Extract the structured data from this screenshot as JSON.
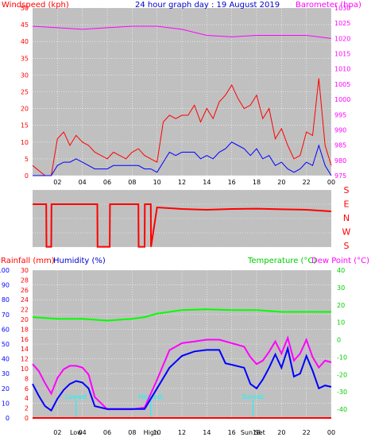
{
  "colors": {
    "panel": "#c0c0c0",
    "grid": "#ffffff",
    "windspeed": "#ff0000",
    "gust": "#0000ff",
    "barometer": "#ff00ff",
    "direction": "#ff0000",
    "rainfall": "#ff0000",
    "humidity": "#0000ff",
    "temperature": "#00ff00",
    "dewpoint": "#ff00ff",
    "events": "#00ffff"
  },
  "chart_data": [
    {
      "type": "line",
      "title": "24 hour graph day : 19 August 2019",
      "ylabel": "Windspeed (kph)",
      "y2label": "Barometer (hpa)",
      "x_ticks": [
        "02",
        "04",
        "06",
        "08",
        "10",
        "12",
        "14",
        "16",
        "18",
        "20",
        "22",
        "00"
      ],
      "ylim": [
        0,
        50
      ],
      "y_ticks": [
        "0",
        "5",
        "10",
        "15",
        "20",
        "25",
        "30",
        "35",
        "40",
        "45",
        "50"
      ],
      "y2lim": [
        975,
        1030
      ],
      "y2_ticks": [
        "975",
        "980",
        "985",
        "990",
        "995",
        "1000",
        "1005",
        "1010",
        "1015",
        "1020",
        "1025",
        "1030"
      ],
      "grid": true,
      "series": [
        {
          "name": "Windspeed",
          "axis": "left",
          "x": [
            0,
            1,
            1.5,
            2,
            2.5,
            3,
            3.5,
            4,
            4.5,
            5,
            5.5,
            6,
            6.5,
            7,
            7.5,
            8,
            8.5,
            9,
            9.5,
            10,
            10.5,
            11,
            11.5,
            12,
            12.5,
            13,
            13.5,
            14,
            14.5,
            15,
            15.5,
            16,
            16.5,
            17,
            17.5,
            18,
            18.5,
            19,
            19.5,
            20,
            20.5,
            21,
            21.5,
            22,
            22.5,
            23,
            23.5,
            24
          ],
          "values": [
            3,
            0,
            0,
            11,
            13,
            9,
            12,
            10,
            9,
            7,
            6,
            5,
            7,
            6,
            5,
            7,
            8,
            6,
            5,
            4,
            16,
            18,
            17,
            18,
            18,
            21,
            16,
            20,
            17,
            22,
            24,
            27,
            23,
            20,
            21,
            24,
            17,
            20,
            11,
            14,
            9,
            5,
            6,
            13,
            12,
            29,
            9,
            3
          ]
        },
        {
          "name": "Gust",
          "axis": "left",
          "x": [
            0,
            1,
            1.5,
            2,
            2.5,
            3,
            3.5,
            4,
            4.5,
            5,
            5.5,
            6,
            6.5,
            7,
            7.5,
            8,
            8.5,
            9,
            9.5,
            10,
            10.5,
            11,
            11.5,
            12,
            12.5,
            13,
            13.5,
            14,
            14.5,
            15,
            15.5,
            16,
            16.5,
            17,
            17.5,
            18,
            18.5,
            19,
            19.5,
            20,
            20.5,
            21,
            21.5,
            22,
            22.5,
            23,
            23.5,
            24
          ],
          "values": [
            0,
            0,
            0,
            3,
            4,
            4,
            5,
            4,
            3,
            2,
            2,
            2,
            3,
            3,
            3,
            3,
            3,
            2,
            2,
            1,
            4,
            7,
            6,
            7,
            7,
            7,
            5,
            6,
            5,
            7,
            8,
            10,
            9,
            8,
            6,
            8,
            5,
            6,
            3,
            4,
            2,
            1,
            2,
            4,
            3,
            9,
            3,
            0
          ]
        },
        {
          "name": "Barometer",
          "axis": "right",
          "x": [
            0,
            2,
            4,
            6,
            8,
            10,
            12,
            14,
            16,
            18,
            20,
            22,
            24
          ],
          "values": [
            1024,
            1023.5,
            1023,
            1023.5,
            1024,
            1024,
            1023,
            1021,
            1020.5,
            1021,
            1021,
            1021,
            1020
          ]
        }
      ]
    },
    {
      "type": "line",
      "ylabels": [
        "S",
        "E",
        "N",
        "W",
        "S"
      ],
      "series": [
        {
          "name": "Wind Direction",
          "x": [
            0,
            1.1,
            1.12,
            1.5,
            1.52,
            3,
            5,
            5.2,
            5.22,
            6.2,
            6.22,
            7,
            8.5,
            8.52,
            9,
            9.02,
            9.5,
            9.52,
            10,
            12,
            14,
            16,
            18,
            20,
            22,
            23,
            24
          ],
          "values": [
            90,
            90,
            358,
            358,
            90,
            90,
            90,
            90,
            358,
            358,
            90,
            90,
            90,
            358,
            358,
            90,
            90,
            358,
            110,
            120,
            125,
            120,
            118,
            122,
            125,
            130,
            135
          ]
        }
      ]
    },
    {
      "type": "line",
      "ylabel": "Rainfall (mm)",
      "ylabel2": "Humidity (%)",
      "y2label": "Temperature (°C)",
      "y3label": "Dew Point (°C)",
      "x_ticks": [
        "02",
        "04",
        "06",
        "08",
        "10",
        "12",
        "14",
        "16",
        "18",
        "20",
        "22",
        "00"
      ],
      "rain_ticks": [
        "0",
        "2",
        "4",
        "6",
        "8",
        "10",
        "12",
        "14",
        "16",
        "18",
        "20",
        "22",
        "24",
        "26",
        "28",
        "30"
      ],
      "hum_ticks": [
        "0",
        "10",
        "20",
        "30",
        "40",
        "50",
        "60",
        "70",
        "80",
        "90",
        "100"
      ],
      "temp_ticks": [
        "-40",
        "-30",
        "-20",
        "-10",
        "0",
        "10",
        "20",
        "30",
        "40"
      ],
      "ylim_hum": [
        0,
        100
      ],
      "ylim_temp": [
        -45,
        40
      ],
      "grid": true,
      "events": [
        {
          "label": "Lowest",
          "x": 3.5,
          "time_label": "Low"
        },
        {
          "label": "Highest",
          "x": 9.5,
          "time_label": "High"
        },
        {
          "label": "Sunset",
          "x": 17.7,
          "time_label": "Sun Set"
        }
      ],
      "series": [
        {
          "name": "Humidity",
          "x": [
            0,
            0.5,
            1,
            1.5,
            2,
            2.5,
            3,
            3.5,
            4,
            4.5,
            5,
            6,
            7,
            8,
            9,
            10,
            11,
            12,
            13,
            14,
            15,
            15.5,
            16,
            17,
            17.5,
            18,
            18.5,
            19,
            19.5,
            20,
            20.5,
            21,
            21.5,
            22,
            22.5,
            23,
            23.5,
            24
          ],
          "values": [
            23,
            15,
            8,
            5,
            13,
            19,
            23,
            25,
            24,
            20,
            8,
            6,
            6,
            6,
            6,
            20,
            34,
            42,
            45,
            46,
            46,
            37,
            36,
            34,
            23,
            20,
            26,
            34,
            43,
            34,
            47,
            28,
            30,
            42,
            32,
            20,
            22,
            21
          ]
        },
        {
          "name": "Dew Point",
          "axis": "temp",
          "x": [
            0,
            0.5,
            1,
            1.5,
            2,
            2.5,
            3,
            3.5,
            4,
            4.5,
            5,
            6,
            7,
            8,
            9,
            10,
            11,
            12,
            13,
            14,
            15,
            16,
            17,
            17.5,
            18,
            18.5,
            19,
            19.5,
            20,
            20.5,
            21,
            21.5,
            22,
            22.5,
            23,
            23.5,
            24
          ],
          "values": [
            -14,
            -18,
            -25,
            -31,
            -22,
            -17,
            -15,
            -15,
            -16,
            -20,
            -33,
            -40,
            -40,
            -40,
            -39,
            -23,
            -6,
            -2,
            -1,
            0,
            0,
            -2,
            -4,
            -10,
            -14,
            -12,
            -7,
            -1,
            -8,
            1,
            -12,
            -8,
            0,
            -10,
            -16,
            -12,
            -13
          ]
        },
        {
          "name": "Temperature",
          "axis": "temp",
          "x": [
            0,
            2,
            4,
            6,
            8,
            9,
            10,
            11,
            12,
            14,
            16,
            18,
            20,
            22,
            24
          ],
          "values": [
            13,
            12,
            12,
            11,
            12,
            13,
            15,
            16,
            17,
            17.5,
            17,
            17,
            16,
            16,
            16
          ]
        },
        {
          "name": "Rainfall",
          "axis": "rain",
          "x": [
            0,
            24
          ],
          "values": [
            0,
            0
          ]
        }
      ]
    }
  ]
}
